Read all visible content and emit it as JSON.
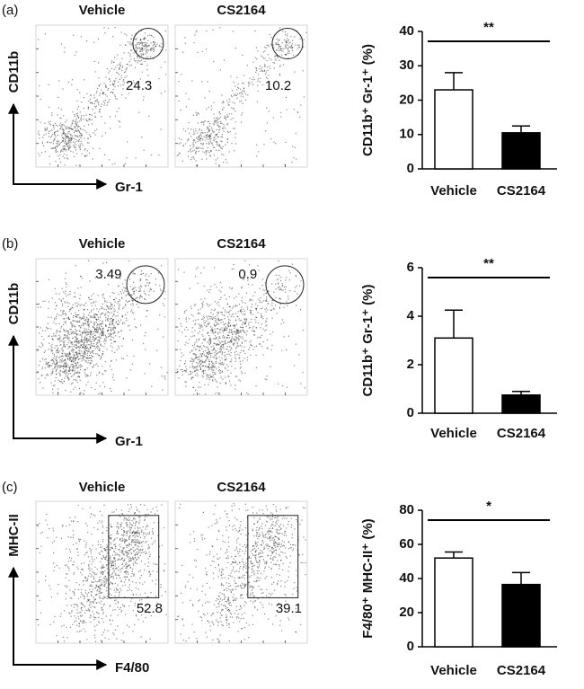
{
  "panels": [
    {
      "label": "(a)",
      "groups": [
        "Vehicle",
        "CS2164"
      ],
      "y_axis": "CD11b",
      "x_axis": "Gr-1",
      "gates": [
        24.3,
        10.2
      ]
    },
    {
      "label": "(b)",
      "groups": [
        "Vehicle",
        "CS2164"
      ],
      "y_axis": "CD11b",
      "x_axis": "Gr-1",
      "gates": [
        3.49,
        0.9
      ]
    },
    {
      "label": "(c)",
      "groups": [
        "Vehicle",
        "CS2164"
      ],
      "y_axis": "MHC-II",
      "x_axis": "F4/80",
      "gates": [
        52.8,
        39.1
      ]
    }
  ],
  "chart_data": [
    {
      "type": "bar",
      "ylabel": "CD11b⁺ Gr-1⁺ (%)",
      "categories": [
        "Vehicle",
        "CS2164"
      ],
      "values": [
        23,
        10.5
      ],
      "errors": [
        5,
        2
      ],
      "colors": [
        "#ffffff",
        "#000000"
      ],
      "ylim": [
        0,
        40
      ],
      "yticks": [
        0,
        10,
        20,
        30,
        40
      ],
      "significance": "**"
    },
    {
      "type": "bar",
      "ylabel": "CD11b⁺ Gr-1⁺ (%)",
      "categories": [
        "Vehicle",
        "CS2164"
      ],
      "values": [
        3.1,
        0.75
      ],
      "errors": [
        1.15,
        0.15
      ],
      "colors": [
        "#ffffff",
        "#000000"
      ],
      "ylim": [
        0,
        6
      ],
      "yticks": [
        0,
        2,
        4,
        6
      ],
      "significance": "**"
    },
    {
      "type": "bar",
      "ylabel": "F4/80⁺ MHC-II⁺ (%)",
      "categories": [
        "Vehicle",
        "CS2164"
      ],
      "values": [
        52,
        36.5
      ],
      "errors": [
        3.5,
        7
      ],
      "colors": [
        "#ffffff",
        "#000000"
      ],
      "ylim": [
        0,
        80
      ],
      "yticks": [
        0,
        20,
        40,
        60,
        80
      ],
      "significance": "*"
    }
  ]
}
